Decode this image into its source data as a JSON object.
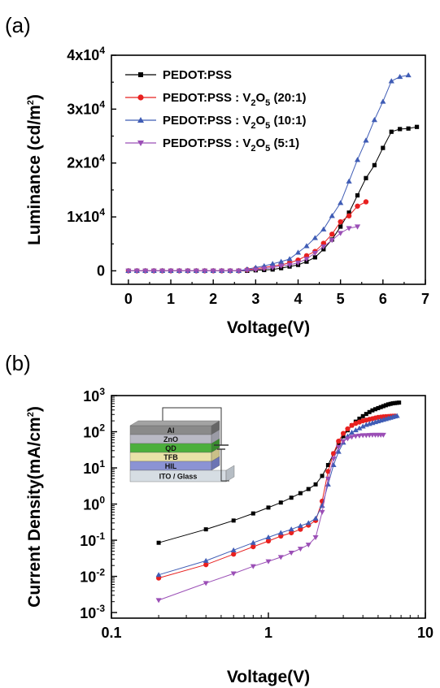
{
  "chart_data": [
    {
      "panel": "(a)",
      "type": "line",
      "xlabel": "Voltage(V)",
      "ylabel": "Luminance (cd/m2)",
      "ylabel_parts": {
        "main": "Luminance (cd/m",
        "sup": "2",
        "end": ")"
      },
      "xlim": [
        -0.4,
        7
      ],
      "ylim": [
        -2500,
        40000
      ],
      "xticks": [
        0,
        1,
        2,
        3,
        4,
        5,
        6,
        7
      ],
      "xtick_labels": [
        "0",
        "1",
        "2",
        "3",
        "4",
        "5",
        "6",
        "7"
      ],
      "yticks": [
        0,
        10000,
        20000,
        30000,
        40000
      ],
      "ytick_labels": [
        {
          "base": "0",
          "exp": ""
        },
        {
          "base": "1x10",
          "exp": "4"
        },
        {
          "base": "2x10",
          "exp": "4"
        },
        {
          "base": "3x10",
          "exp": "4"
        },
        {
          "base": "4x10",
          "exp": "4"
        }
      ],
      "legend_position": "top-left",
      "series": [
        {
          "name": "PEDOT:PSS",
          "color": "#000000",
          "marker": "square",
          "x": [
            0,
            0.2,
            0.4,
            0.6,
            0.8,
            1.0,
            1.2,
            1.4,
            1.6,
            1.8,
            2.0,
            2.2,
            2.4,
            2.6,
            2.8,
            3.0,
            3.2,
            3.4,
            3.6,
            3.8,
            4.0,
            4.2,
            4.4,
            4.6,
            4.8,
            5.0,
            5.2,
            5.4,
            5.6,
            5.8,
            6.0,
            6.2,
            6.4,
            6.6,
            6.8
          ],
          "y": [
            0,
            0,
            0,
            0,
            0,
            0,
            0,
            0,
            0,
            0,
            0,
            0,
            0,
            0,
            0,
            100,
            150,
            250,
            500,
            800,
            1100,
            1700,
            2500,
            4000,
            5800,
            8200,
            10800,
            14000,
            17200,
            19600,
            22800,
            25800,
            26300,
            26400,
            26700
          ]
        },
        {
          "name": "PEDOT:PSS : V2O5 (20:1)",
          "name_parts": {
            "main": "PEDOT:PSS : V",
            "sub1": "2",
            "mid": "O",
            "sub2": "5",
            "end": " (20:1)"
          },
          "color": "#e8201f",
          "marker": "circle",
          "x": [
            0,
            0.2,
            0.4,
            0.6,
            0.8,
            1.0,
            1.2,
            1.4,
            1.6,
            1.8,
            2.0,
            2.2,
            2.4,
            2.6,
            2.8,
            3.0,
            3.2,
            3.4,
            3.6,
            3.8,
            4.0,
            4.2,
            4.4,
            4.6,
            4.8,
            5.0,
            5.2,
            5.4,
            5.6
          ],
          "y": [
            0,
            0,
            0,
            0,
            0,
            0,
            0,
            0,
            0,
            0,
            0,
            0,
            0,
            0,
            200,
            400,
            600,
            900,
            1100,
            1500,
            2000,
            2800,
            3600,
            5100,
            6800,
            9100,
            10200,
            12000,
            12800
          ]
        },
        {
          "name": "PEDOT:PSS : V2O5 (10:1)",
          "name_parts": {
            "main": "PEDOT:PSS : V",
            "sub1": "2",
            "mid": "O",
            "sub2": "5",
            "end": " (10:1)"
          },
          "color": "#3f5cb5",
          "marker": "triangle-up",
          "x": [
            0,
            0.2,
            0.4,
            0.6,
            0.8,
            1.0,
            1.2,
            1.4,
            1.6,
            1.8,
            2.0,
            2.2,
            2.4,
            2.6,
            2.8,
            3.0,
            3.2,
            3.4,
            3.6,
            3.8,
            4.0,
            4.2,
            4.4,
            4.6,
            4.8,
            5.0,
            5.2,
            5.4,
            5.6,
            5.8,
            6.0,
            6.2,
            6.4,
            6.6
          ],
          "y": [
            0,
            0,
            0,
            0,
            0,
            0,
            0,
            0,
            0,
            0,
            0,
            0,
            0,
            0,
            300,
            600,
            900,
            1300,
            1700,
            2200,
            3400,
            4600,
            6100,
            7700,
            10200,
            12600,
            16600,
            20600,
            24200,
            28000,
            31400,
            35200,
            36000,
            36300
          ]
        },
        {
          "name": "PEDOT:PSS : V2O5 (5:1)",
          "name_parts": {
            "main": "PEDOT:PSS : V",
            "sub1": "2",
            "mid": "O",
            "sub2": "5",
            "end": " (5:1)"
          },
          "color": "#9b4fb6",
          "marker": "triangle-down",
          "x": [
            0,
            0.2,
            0.4,
            0.6,
            0.8,
            1.0,
            1.2,
            1.4,
            1.6,
            1.8,
            2.0,
            2.2,
            2.4,
            2.6,
            2.8,
            3.0,
            3.2,
            3.4,
            3.6,
            3.8,
            4.0,
            4.2,
            4.4,
            4.6,
            4.8,
            5.0,
            5.2,
            5.4
          ],
          "y": [
            0,
            0,
            0,
            0,
            0,
            0,
            0,
            0,
            0,
            0,
            0,
            0,
            0,
            0,
            100,
            200,
            400,
            600,
            900,
            1100,
            1500,
            2200,
            3300,
            4500,
            5700,
            7000,
            7900,
            8200
          ]
        }
      ]
    },
    {
      "panel": "(b)",
      "type": "line",
      "xscale": "log",
      "yscale": "log",
      "xlabel": "Voltage(V)",
      "ylabel": "Current Density(mA/cm2)",
      "ylabel_parts": {
        "main": "Current Density(mA/cm",
        "sup": "2",
        "end": ")"
      },
      "xlim": [
        0.1,
        10
      ],
      "ylim": [
        0.0007,
        1000
      ],
      "xticks": [
        0.1,
        1,
        10
      ],
      "xtick_labels": [
        "0.1",
        "1",
        "10"
      ],
      "yticks": [
        0.001,
        0.01,
        0.1,
        1,
        10,
        100,
        1000
      ],
      "ytick_labels": [
        {
          "base": "10",
          "exp": "-3"
        },
        {
          "base": "10",
          "exp": "-2"
        },
        {
          "base": "10",
          "exp": "-1"
        },
        {
          "base": "10",
          "exp": "0"
        },
        {
          "base": "10",
          "exp": "1"
        },
        {
          "base": "10",
          "exp": "2"
        },
        {
          "base": "10",
          "exp": "3"
        }
      ],
      "inset": {
        "layers": [
          "Al",
          "ZnO",
          "QD",
          "TFB",
          "HIL",
          "ITO / Glass"
        ]
      },
      "series": [
        {
          "name": "PEDOT:PSS",
          "color": "#000000",
          "marker": "square",
          "x": [
            0.2,
            0.4,
            0.6,
            0.8,
            1.0,
            1.2,
            1.4,
            1.6,
            1.8,
            2.0,
            2.2,
            2.4,
            2.6,
            2.8,
            3.0,
            3.2,
            3.4,
            3.6,
            3.8,
            4.0,
            4.2,
            4.4,
            4.6,
            4.8,
            5.0,
            5.2,
            5.4,
            5.6,
            5.8,
            6.0,
            6.2,
            6.4,
            6.6,
            6.8
          ],
          "y": [
            0.085,
            0.2,
            0.35,
            0.55,
            0.8,
            1.1,
            1.5,
            2.0,
            2.6,
            3.5,
            6.0,
            12,
            25,
            45,
            75,
            110,
            150,
            190,
            230,
            270,
            310,
            350,
            390,
            420,
            450,
            480,
            510,
            540,
            570,
            590,
            610,
            620,
            630,
            640
          ]
        },
        {
          "name": "PEDOT:PSS : V2O5 (20:1)",
          "color": "#e8201f",
          "marker": "circle",
          "x": [
            0.2,
            0.4,
            0.6,
            0.8,
            1.0,
            1.2,
            1.4,
            1.6,
            1.8,
            2.0,
            2.2,
            2.4,
            2.6,
            2.8,
            3.0,
            3.2,
            3.4,
            3.6,
            3.8,
            4.0,
            4.2,
            4.4,
            4.6,
            4.8,
            5.0,
            5.2,
            5.4,
            5.6,
            5.8,
            6.0,
            6.2,
            6.4
          ],
          "y": [
            0.009,
            0.021,
            0.041,
            0.066,
            0.095,
            0.13,
            0.16,
            0.2,
            0.26,
            0.35,
            1.2,
            8,
            25,
            55,
            90,
            120,
            150,
            170,
            185,
            200,
            210,
            220,
            230,
            240,
            250,
            255,
            260,
            262,
            265,
            268,
            270,
            272
          ]
        },
        {
          "name": "PEDOT:PSS : V2O5 (10:1)",
          "color": "#3f5cb5",
          "marker": "triangle-up",
          "x": [
            0.2,
            0.4,
            0.6,
            0.8,
            1.0,
            1.2,
            1.4,
            1.6,
            1.8,
            2.0,
            2.2,
            2.4,
            2.6,
            2.8,
            3.0,
            3.2,
            3.4,
            3.6,
            3.8,
            4.0,
            4.2,
            4.4,
            4.6,
            4.8,
            5.0,
            5.2,
            5.4,
            5.6,
            5.8,
            6.0,
            6.2,
            6.4,
            6.6
          ],
          "y": [
            0.011,
            0.027,
            0.053,
            0.085,
            0.12,
            0.16,
            0.2,
            0.25,
            0.3,
            0.4,
            0.9,
            3.5,
            12,
            28,
            50,
            75,
            95,
            110,
            125,
            140,
            155,
            165,
            175,
            185,
            195,
            205,
            215,
            225,
            235,
            245,
            255,
            265,
            275
          ]
        },
        {
          "name": "PEDOT:PSS : V2O5 (5:1)",
          "color": "#9b4fb6",
          "marker": "triangle-down",
          "x": [
            0.2,
            0.4,
            0.6,
            0.8,
            1.0,
            1.2,
            1.4,
            1.6,
            1.8,
            2.0,
            2.2,
            2.4,
            2.6,
            2.8,
            3.0,
            3.2,
            3.4,
            3.6,
            3.8,
            4.0,
            4.2,
            4.4,
            4.6,
            4.8,
            5.0,
            5.2,
            5.4
          ],
          "y": [
            0.0022,
            0.0065,
            0.012,
            0.019,
            0.026,
            0.034,
            0.045,
            0.058,
            0.075,
            0.12,
            0.6,
            5,
            18,
            38,
            55,
            65,
            72,
            76,
            78,
            80,
            80,
            81,
            82,
            82,
            82,
            82,
            82
          ]
        }
      ]
    }
  ]
}
